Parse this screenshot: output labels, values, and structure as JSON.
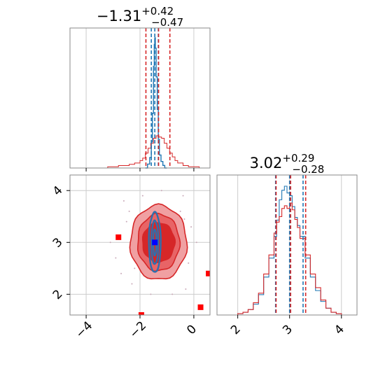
{
  "chart_data": [
    {
      "type": "histogram",
      "panel": "marginal-param-1",
      "title": {
        "median": "−1.31",
        "upper": "+0.42",
        "lower": "−0.47"
      },
      "xlim": [
        -4.6,
        0.6
      ],
      "series": [
        {
          "name": "",
          "color": "#1f77b4",
          "peak_x": -1.45,
          "quantiles": [
            -1.58,
            -1.45,
            -1.32
          ],
          "bin_width": 0.04,
          "x": [
            -1.8,
            -1.72,
            -1.64,
            -1.58,
            -1.54,
            -1.5,
            -1.47,
            -1.45,
            -1.43,
            -1.4,
            -1.36,
            -1.32,
            -1.28,
            -1.22,
            -1.15,
            -1.08
          ],
          "counts": [
            0.0,
            0.03,
            0.08,
            0.2,
            0.42,
            0.78,
            0.95,
            1.0,
            0.92,
            0.7,
            0.45,
            0.22,
            0.1,
            0.05,
            0.02,
            0.0
          ]
        },
        {
          "name": "",
          "color": "#d62728",
          "quantiles": [
            -1.78,
            -1.31,
            -0.89
          ],
          "bin_width": 0.1,
          "x": [
            -3.4,
            -3.2,
            -3.0,
            -2.8,
            -2.6,
            -2.4,
            -2.2,
            -2.0,
            -1.9,
            -1.8,
            -1.7,
            -1.6,
            -1.5,
            -1.4,
            -1.3,
            -1.2,
            -1.1,
            -1.0,
            -0.9,
            -0.8,
            -0.7,
            -0.6,
            -0.4,
            -0.2,
            0.0,
            0.2
          ],
          "counts": [
            0.0,
            0.01,
            0.01,
            0.02,
            0.02,
            0.03,
            0.04,
            0.06,
            0.08,
            0.12,
            0.16,
            0.2,
            0.24,
            0.26,
            0.25,
            0.24,
            0.2,
            0.16,
            0.12,
            0.09,
            0.06,
            0.04,
            0.02,
            0.01,
            0.01,
            0.0
          ]
        }
      ]
    },
    {
      "type": "histogram",
      "panel": "marginal-param-2",
      "title": {
        "median": "3.02",
        "upper": "+0.29",
        "lower": "−0.28"
      },
      "xlim": [
        1.6,
        4.3
      ],
      "xticks": [
        "2",
        "3",
        "4"
      ],
      "xtick_values": [
        2,
        3,
        4
      ],
      "series": [
        {
          "name": "",
          "color": "#1f77b4",
          "quantiles": [
            2.73,
            3.0,
            3.26
          ],
          "x": [
            1.9,
            2.0,
            2.1,
            2.2,
            2.3,
            2.4,
            2.5,
            2.6,
            2.7,
            2.75,
            2.8,
            2.85,
            2.9,
            2.95,
            3.0,
            3.05,
            3.1,
            3.15,
            3.2,
            3.3,
            3.4,
            3.5,
            3.6,
            3.7,
            3.8,
            3.9,
            4.0
          ],
          "counts": [
            0.0,
            0.01,
            0.02,
            0.04,
            0.08,
            0.15,
            0.28,
            0.42,
            0.58,
            0.7,
            0.85,
            0.92,
            0.95,
            0.9,
            0.88,
            0.8,
            0.72,
            0.66,
            0.58,
            0.42,
            0.28,
            0.18,
            0.1,
            0.05,
            0.02,
            0.01,
            0.0
          ]
        },
        {
          "name": "",
          "color": "#d62728",
          "quantiles": [
            2.74,
            3.02,
            3.31
          ],
          "x": [
            1.9,
            2.0,
            2.1,
            2.2,
            2.3,
            2.4,
            2.5,
            2.6,
            2.7,
            2.75,
            2.8,
            2.85,
            2.9,
            2.95,
            3.0,
            3.05,
            3.1,
            3.15,
            3.2,
            3.3,
            3.4,
            3.5,
            3.6,
            3.7,
            3.8,
            3.9,
            4.0
          ],
          "counts": [
            0.0,
            0.01,
            0.02,
            0.04,
            0.09,
            0.16,
            0.3,
            0.44,
            0.6,
            0.68,
            0.72,
            0.78,
            0.8,
            0.78,
            0.82,
            0.77,
            0.7,
            0.64,
            0.56,
            0.44,
            0.3,
            0.2,
            0.11,
            0.05,
            0.02,
            0.01,
            0.0
          ]
        }
      ]
    },
    {
      "type": "contour",
      "panel": "joint-param-1-param-2",
      "xlim": [
        -4.6,
        0.6
      ],
      "ylim": [
        1.6,
        4.3
      ],
      "xticks": [
        "−4",
        "−2",
        "0"
      ],
      "xtick_values": [
        -4,
        -2,
        0
      ],
      "yticks": [
        "2",
        "3",
        "4"
      ],
      "ytick_values": [
        2,
        3,
        4
      ],
      "contours": [
        {
          "series": "red",
          "fill": "#f0a0a2",
          "edge": "#d62728",
          "cx": -1.31,
          "cy": 3.0,
          "rx": 1.05,
          "ry": 0.72
        },
        {
          "series": "red",
          "fill": "#e86466",
          "edge": "#d62728",
          "cx": -1.31,
          "cy": 3.0,
          "rx": 0.78,
          "ry": 0.55
        },
        {
          "series": "red",
          "fill": "#d62728",
          "edge": "#d62728",
          "cx": -1.31,
          "cy": 3.0,
          "rx": 0.6,
          "ry": 0.38
        },
        {
          "series": "blue",
          "fill": "none",
          "edge": "#2e6fad",
          "cx": -1.45,
          "cy": 3.0,
          "rx": 0.22,
          "ry": 0.58
        },
        {
          "series": "blue",
          "fill": "none",
          "edge": "#2e6fad",
          "cx": -1.45,
          "cy": 3.0,
          "rx": 0.13,
          "ry": 0.42
        },
        {
          "series": "blue",
          "fill": "none",
          "edge": "#2e6fad",
          "cx": -1.45,
          "cy": 3.0,
          "rx": 0.06,
          "ry": 0.25
        }
      ],
      "center_marker": {
        "x": -1.45,
        "y": 3.0,
        "color": "#0000ff"
      },
      "points": [
        {
          "x": -2.8,
          "y": 3.1,
          "color": "#ff0000"
        },
        {
          "x": -1.95,
          "y": 1.6,
          "color": "#ff0000"
        },
        {
          "x": 0.25,
          "y": 1.75,
          "color": "#ff0000"
        },
        {
          "x": 0.55,
          "y": 2.4,
          "color": "#ff0000"
        }
      ],
      "scatter": [
        [
          -2.6,
          3.8
        ],
        [
          -2.3,
          2.2
        ],
        [
          -0.4,
          3.9
        ],
        [
          -0.3,
          2.1
        ],
        [
          -2.9,
          2.7
        ],
        [
          -0.1,
          3.3
        ],
        [
          -1.9,
          3.9
        ],
        [
          -0.8,
          2.0
        ],
        [
          -2.5,
          3.4
        ],
        [
          -0.2,
          2.6
        ],
        [
          -3.1,
          3.0
        ],
        [
          0.1,
          3.0
        ],
        [
          -1.2,
          4.0
        ],
        [
          -1.6,
          2.0
        ],
        [
          -2.7,
          2.4
        ],
        [
          -0.5,
          3.6
        ],
        [
          -2.2,
          2.5
        ],
        [
          -0.6,
          2.5
        ],
        [
          -2.4,
          3.6
        ],
        [
          -0.35,
          3.45
        ]
      ]
    }
  ]
}
